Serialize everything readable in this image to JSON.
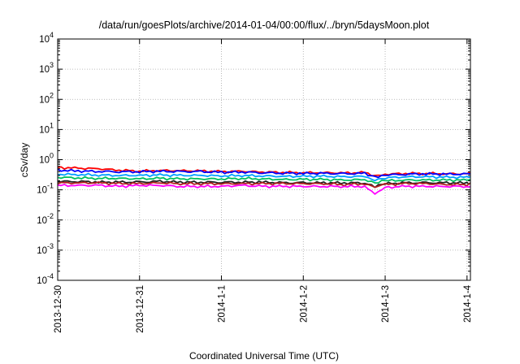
{
  "chart_data": {
    "type": "line",
    "title": "/data/run/goesPlots/archive/2014-01-04/00:00/flux/../bryn/5daysMoon.plot",
    "xlabel": "Coordinated Universal Time (UTC)",
    "ylabel": "cSv/day",
    "y_scale": "log",
    "ylim": [
      0.0001,
      10000
    ],
    "y_ticks": [
      {
        "base": "10",
        "exp": "4",
        "value": 10000
      },
      {
        "base": "10",
        "exp": "3",
        "value": 1000
      },
      {
        "base": "10",
        "exp": "2",
        "value": 100
      },
      {
        "base": "10",
        "exp": "1",
        "value": 10
      },
      {
        "base": "10",
        "exp": "0",
        "value": 1
      },
      {
        "base": "10",
        "exp": "-1",
        "value": 0.1
      },
      {
        "base": "10",
        "exp": "-2",
        "value": 0.01
      },
      {
        "base": "10",
        "exp": "-3",
        "value": 0.001
      },
      {
        "base": "10",
        "exp": "-4",
        "value": 0.0001
      }
    ],
    "x_ticks": [
      {
        "label": "2013-12-30",
        "value": "2013-12-30"
      },
      {
        "label": "2013-12-31",
        "value": "2013-12-31"
      },
      {
        "label": "2014-1-1",
        "value": "2014-01-01"
      },
      {
        "label": "2014-1-2",
        "value": "2014-01-02"
      },
      {
        "label": "2014-1-3",
        "value": "2014-01-03"
      },
      {
        "label": "2014-1-4",
        "value": "2014-01-04"
      }
    ],
    "xlim": [
      "2013-12-30T00:00",
      "2014-01-04T01:00"
    ],
    "grid": true,
    "legend": "none",
    "x": [
      "2013-12-30T00:00",
      "2013-12-30T06:00",
      "2013-12-30T12:00",
      "2013-12-30T18:00",
      "2013-12-31T00:00",
      "2013-12-31T06:00",
      "2013-12-31T12:00",
      "2013-12-31T18:00",
      "2014-01-01T00:00",
      "2014-01-01T06:00",
      "2014-01-01T12:00",
      "2014-01-01T18:00",
      "2014-01-02T00:00",
      "2014-01-02T06:00",
      "2014-01-02T12:00",
      "2014-01-02T18:00",
      "2014-01-02T21:00",
      "2014-01-03T00:00",
      "2014-01-03T06:00",
      "2014-01-03T12:00",
      "2014-01-03T18:00",
      "2014-01-04T00:00",
      "2014-01-04T01:00"
    ],
    "series": [
      {
        "color": "#ff0000",
        "values": [
          0.55,
          0.52,
          0.5,
          0.45,
          0.42,
          0.44,
          0.43,
          0.42,
          0.4,
          0.41,
          0.39,
          0.38,
          0.37,
          0.37,
          0.36,
          0.37,
          0.3,
          0.33,
          0.35,
          0.35,
          0.34,
          0.34,
          0.35
        ]
      },
      {
        "color": "#0000ff",
        "values": [
          0.45,
          0.42,
          0.41,
          0.4,
          0.4,
          0.41,
          0.4,
          0.4,
          0.38,
          0.39,
          0.37,
          0.36,
          0.35,
          0.35,
          0.34,
          0.35,
          0.27,
          0.31,
          0.33,
          0.34,
          0.33,
          0.33,
          0.34
        ]
      },
      {
        "color": "#00a0ff",
        "values": [
          0.33,
          0.32,
          0.31,
          0.3,
          0.3,
          0.31,
          0.3,
          0.3,
          0.29,
          0.3,
          0.29,
          0.28,
          0.28,
          0.28,
          0.27,
          0.28,
          0.22,
          0.25,
          0.27,
          0.27,
          0.26,
          0.26,
          0.27
        ]
      },
      {
        "color": "#00c060",
        "values": [
          0.26,
          0.25,
          0.24,
          0.24,
          0.23,
          0.24,
          0.23,
          0.23,
          0.23,
          0.24,
          0.23,
          0.22,
          0.22,
          0.22,
          0.21,
          0.22,
          0.17,
          0.2,
          0.21,
          0.21,
          0.21,
          0.21,
          0.22
        ]
      },
      {
        "color": "#202020",
        "values": [
          0.19,
          0.19,
          0.18,
          0.18,
          0.18,
          0.19,
          0.18,
          0.18,
          0.18,
          0.18,
          0.18,
          0.17,
          0.17,
          0.17,
          0.17,
          0.17,
          0.13,
          0.16,
          0.17,
          0.17,
          0.17,
          0.17,
          0.17
        ]
      },
      {
        "color": "#b02020",
        "values": [
          0.17,
          0.17,
          0.17,
          0.16,
          0.16,
          0.17,
          0.16,
          0.16,
          0.16,
          0.16,
          0.16,
          0.16,
          0.16,
          0.16,
          0.15,
          0.16,
          0.12,
          0.15,
          0.16,
          0.16,
          0.15,
          0.15,
          0.16
        ]
      },
      {
        "color": "#ff00ff",
        "values": [
          0.14,
          0.14,
          0.14,
          0.13,
          0.14,
          0.14,
          0.13,
          0.13,
          0.13,
          0.14,
          0.13,
          0.13,
          0.13,
          0.13,
          0.13,
          0.13,
          0.07,
          0.12,
          0.13,
          0.13,
          0.13,
          0.13,
          0.13
        ]
      }
    ]
  }
}
